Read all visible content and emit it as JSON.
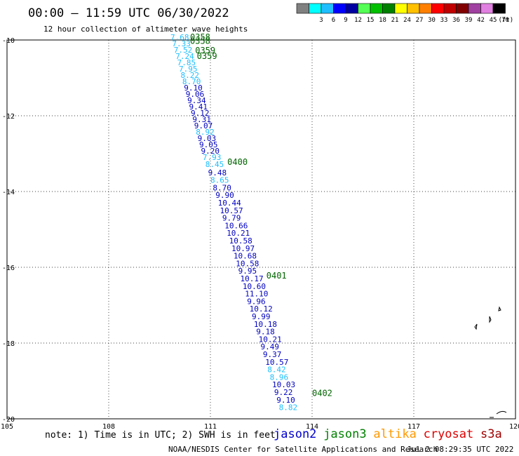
{
  "header": {
    "title": "00:00 — 11:59 UTC 06/30/2022",
    "subtitle": "12 hour collection of altimeter wave heights"
  },
  "legend": {
    "unit": "(ft)",
    "bins": [
      {
        "label": "",
        "color": "#808080"
      },
      {
        "label": "3",
        "color": "#00ffff"
      },
      {
        "label": "6",
        "color": "#1fbfff"
      },
      {
        "label": "9",
        "color": "#0000ff"
      },
      {
        "label": "12",
        "color": "#0000a0"
      },
      {
        "label": "15",
        "color": "#55ff55"
      },
      {
        "label": "18",
        "color": "#00c000"
      },
      {
        "label": "21",
        "color": "#008000"
      },
      {
        "label": "24",
        "color": "#ffff00"
      },
      {
        "label": "27",
        "color": "#ffc000"
      },
      {
        "label": "30",
        "color": "#ff8000"
      },
      {
        "label": "33",
        "color": "#ff0000"
      },
      {
        "label": "36",
        "color": "#c00000"
      },
      {
        "label": "39",
        "color": "#800000"
      },
      {
        "label": "42",
        "color": "#a040a0"
      },
      {
        "label": "45",
        "color": "#e080e0"
      },
      {
        "label": "70",
        "color": "#000000"
      }
    ]
  },
  "map": {
    "lon_range": [
      105,
      120
    ],
    "lat_range": [
      -10,
      -20
    ],
    "lon_ticks": [
      "105",
      "108",
      "111",
      "114",
      "117",
      "120"
    ],
    "lat_ticks": [
      "-10",
      "-12",
      "-14",
      "-16",
      "-18",
      "-20"
    ]
  },
  "time_labels": [
    {
      "text": "0358",
      "lon": 110.4,
      "lat": -10.0,
      "color": "#006400"
    },
    {
      "text": "0358",
      "lon": 110.4,
      "lat": -10.1,
      "color": "#006400"
    },
    {
      "text": "0359",
      "lon": 110.55,
      "lat": -10.35,
      "color": "#006400"
    },
    {
      "text": "0359",
      "lon": 110.6,
      "lat": -10.5,
      "color": "#006400"
    },
    {
      "text": "0400",
      "lon": 111.5,
      "lat": -13.3,
      "color": "#006400"
    },
    {
      "text": "0401",
      "lon": 112.65,
      "lat": -16.3,
      "color": "#006400"
    },
    {
      "text": "0402",
      "lon": 114.0,
      "lat": -19.4,
      "color": "#006400"
    }
  ],
  "swh": [
    {
      "text": "7.68",
      "lon": 109.82,
      "lat": -10.0,
      "color": "#1fbfff"
    },
    {
      "text": "7.33",
      "lon": 109.87,
      "lat": -10.17,
      "color": "#1fbfff"
    },
    {
      "text": "7.52",
      "lon": 109.92,
      "lat": -10.33,
      "color": "#1fbfff"
    },
    {
      "text": "7.24",
      "lon": 109.97,
      "lat": -10.5,
      "color": "#1fbfff"
    },
    {
      "text": "7.85",
      "lon": 110.02,
      "lat": -10.67,
      "color": "#1fbfff"
    },
    {
      "text": "7.95",
      "lon": 110.07,
      "lat": -10.83,
      "color": "#1fbfff"
    },
    {
      "text": "8.22",
      "lon": 110.12,
      "lat": -11.0,
      "color": "#1fbfff"
    },
    {
      "text": "8.70",
      "lon": 110.17,
      "lat": -11.17,
      "color": "#1fbfff"
    },
    {
      "text": "9.10",
      "lon": 110.22,
      "lat": -11.33,
      "color": "#0000c0"
    },
    {
      "text": "9.06",
      "lon": 110.27,
      "lat": -11.5,
      "color": "#0000c0"
    },
    {
      "text": "9.34",
      "lon": 110.32,
      "lat": -11.67,
      "color": "#0000c0"
    },
    {
      "text": "9.41",
      "lon": 110.37,
      "lat": -11.83,
      "color": "#0000c0"
    },
    {
      "text": "9.12",
      "lon": 110.42,
      "lat": -12.0,
      "color": "#0000c0"
    },
    {
      "text": "9.31",
      "lon": 110.47,
      "lat": -12.17,
      "color": "#0000c0"
    },
    {
      "text": "9.07",
      "lon": 110.52,
      "lat": -12.33,
      "color": "#0000c0"
    },
    {
      "text": "8.92",
      "lon": 110.57,
      "lat": -12.5,
      "color": "#1fbfff"
    },
    {
      "text": "9.03",
      "lon": 110.62,
      "lat": -12.67,
      "color": "#0000c0"
    },
    {
      "text": "9.05",
      "lon": 110.67,
      "lat": -12.83,
      "color": "#0000c0"
    },
    {
      "text": "9.20",
      "lon": 110.72,
      "lat": -13.0,
      "color": "#0000c0"
    },
    {
      "text": "7.93",
      "lon": 110.77,
      "lat": -13.17,
      "color": "#1fbfff"
    },
    {
      "text": "8.45",
      "lon": 110.85,
      "lat": -13.35,
      "color": "#1fbfff"
    },
    {
      "text": "9.48",
      "lon": 110.93,
      "lat": -13.57,
      "color": "#0000c0"
    },
    {
      "text": "8.65",
      "lon": 111.0,
      "lat": -13.77,
      "color": "#1fbfff"
    },
    {
      "text": "8.70",
      "lon": 111.07,
      "lat": -13.97,
      "color": "#0000c0"
    },
    {
      "text": "9.90",
      "lon": 111.15,
      "lat": -14.17,
      "color": "#0000c0"
    },
    {
      "text": "10.44",
      "lon": 111.22,
      "lat": -14.37,
      "color": "#0000c0"
    },
    {
      "text": "10.57",
      "lon": 111.28,
      "lat": -14.57,
      "color": "#0000c0"
    },
    {
      "text": "9.79",
      "lon": 111.35,
      "lat": -14.77,
      "color": "#0000c0"
    },
    {
      "text": "10.66",
      "lon": 111.42,
      "lat": -14.97,
      "color": "#0000c0"
    },
    {
      "text": "10.21",
      "lon": 111.48,
      "lat": -15.17,
      "color": "#0000c0"
    },
    {
      "text": "10.58",
      "lon": 111.55,
      "lat": -15.37,
      "color": "#0000c0"
    },
    {
      "text": "10.97",
      "lon": 111.62,
      "lat": -15.57,
      "color": "#0000c0"
    },
    {
      "text": "10.68",
      "lon": 111.68,
      "lat": -15.77,
      "color": "#0000c0"
    },
    {
      "text": "10.58",
      "lon": 111.75,
      "lat": -15.97,
      "color": "#0000c0"
    },
    {
      "text": "9.95",
      "lon": 111.82,
      "lat": -16.17,
      "color": "#0000c0"
    },
    {
      "text": "10.17",
      "lon": 111.88,
      "lat": -16.37,
      "color": "#0000c0"
    },
    {
      "text": "10.60",
      "lon": 111.95,
      "lat": -16.57,
      "color": "#0000c0"
    },
    {
      "text": "11.10",
      "lon": 112.02,
      "lat": -16.77,
      "color": "#0000c0"
    },
    {
      "text": "9.96",
      "lon": 112.08,
      "lat": -16.97,
      "color": "#0000c0"
    },
    {
      "text": "10.12",
      "lon": 112.15,
      "lat": -17.17,
      "color": "#0000c0"
    },
    {
      "text": "9.99",
      "lon": 112.22,
      "lat": -17.37,
      "color": "#0000c0"
    },
    {
      "text": "10.18",
      "lon": 112.28,
      "lat": -17.57,
      "color": "#0000c0"
    },
    {
      "text": "9.18",
      "lon": 112.35,
      "lat": -17.77,
      "color": "#0000c0"
    },
    {
      "text": "10.21",
      "lon": 112.42,
      "lat": -17.97,
      "color": "#0000c0"
    },
    {
      "text": "9.49",
      "lon": 112.48,
      "lat": -18.17,
      "color": "#0000c0"
    },
    {
      "text": "9.37",
      "lon": 112.55,
      "lat": -18.37,
      "color": "#0000c0"
    },
    {
      "text": "10.57",
      "lon": 112.62,
      "lat": -18.57,
      "color": "#0000c0"
    },
    {
      "text": "8.42",
      "lon": 112.68,
      "lat": -18.77,
      "color": "#1fbfff"
    },
    {
      "text": "8.96",
      "lon": 112.75,
      "lat": -18.97,
      "color": "#1fbfff"
    },
    {
      "text": "10.03",
      "lon": 112.82,
      "lat": -19.17,
      "color": "#0000c0"
    },
    {
      "text": "9.22",
      "lon": 112.88,
      "lat": -19.37,
      "color": "#0000c0"
    },
    {
      "text": "9.10",
      "lon": 112.95,
      "lat": -19.57,
      "color": "#0000c0"
    },
    {
      "text": "8.82",
      "lon": 113.02,
      "lat": -19.77,
      "color": "#1fbfff"
    }
  ],
  "footer": {
    "note": "note: 1) Time is in UTC; 2) SWH is in feet",
    "satellites": [
      {
        "text": "jason2",
        "color": "#0000d0"
      },
      {
        "text": "jason3",
        "color": "#008000"
      },
      {
        "text": "altika",
        "color": "#ff9900"
      },
      {
        "text": "cryosat",
        "color": "#e00000"
      },
      {
        "text": "s3a",
        "color": "#a00000"
      }
    ],
    "credit": "NOAA/NESDIS Center for Satellite Applications and Research",
    "timestamp": "Jul  2 08:29:35 UTC 2022"
  }
}
